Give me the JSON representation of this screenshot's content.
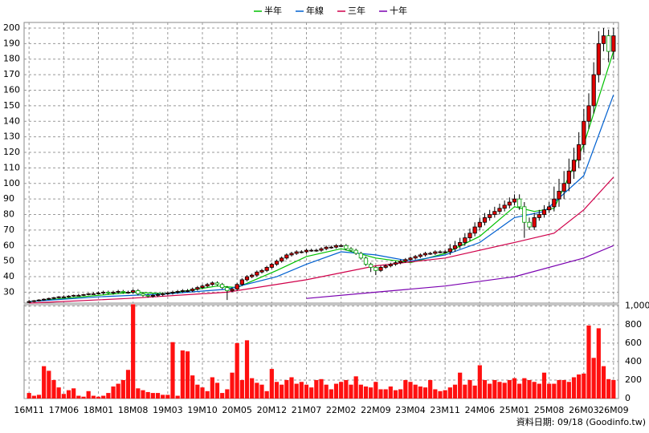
{
  "chart_data": [
    {
      "type": "candlestick",
      "xlim": [
        -1,
        119
      ],
      "xticks": [
        {
          "value": 0,
          "label": "16M11"
        },
        {
          "value": 7,
          "label": "17M06"
        },
        {
          "value": 14,
          "label": "18M01"
        },
        {
          "value": 21,
          "label": "18M08"
        },
        {
          "value": 28,
          "label": "19M03"
        },
        {
          "value": 35,
          "label": "19M10"
        },
        {
          "value": 42,
          "label": "20M05"
        },
        {
          "value": 49,
          "label": "20M12"
        },
        {
          "value": 56,
          "label": "21M07"
        },
        {
          "value": 63,
          "label": "22M02"
        },
        {
          "value": 70,
          "label": "22M09"
        },
        {
          "value": 77,
          "label": "23M04"
        },
        {
          "value": 84,
          "label": "23M11"
        },
        {
          "value": 91,
          "label": "24M06"
        },
        {
          "value": 98,
          "label": "25M01"
        },
        {
          "value": 105,
          "label": "25M08"
        },
        {
          "value": 112,
          "label": "26M03"
        },
        {
          "value": 118,
          "label": "26M09"
        }
      ],
      "ylim": [
        23,
        203.6
      ],
      "yticks": [
        30,
        40,
        50,
        60,
        70,
        80,
        90,
        100,
        110,
        120,
        130,
        140,
        150,
        160,
        170,
        180,
        190,
        200
      ],
      "grid": true,
      "up_color": "#e00000",
      "down_color": "#00a000",
      "open": [
        23.5,
        24,
        24.5,
        25,
        25.5,
        26,
        26.5,
        27,
        27,
        27.5,
        28,
        28,
        28.5,
        29,
        29,
        29.5,
        30,
        29.5,
        30,
        30.5,
        30,
        30,
        31,
        29,
        28,
        27.5,
        28,
        28.5,
        29,
        29.5,
        30,
        30.5,
        31,
        31,
        32,
        33,
        34,
        35,
        36,
        35,
        33,
        31,
        32,
        35,
        38,
        40,
        41,
        43,
        44,
        46,
        48,
        50,
        52,
        54,
        55,
        56,
        56,
        57,
        57,
        57,
        58,
        59,
        59,
        60,
        60,
        58,
        57,
        55,
        52,
        48,
        46,
        44,
        46,
        47,
        48,
        49,
        50,
        51,
        52,
        53,
        54,
        55,
        55,
        56,
        56,
        56,
        58,
        60,
        62,
        65,
        68,
        72,
        75,
        78,
        80,
        82,
        84,
        86,
        88,
        90,
        85,
        75,
        72,
        78,
        80,
        83,
        85,
        90,
        95,
        100,
        108,
        115,
        125,
        140,
        150,
        170,
        190,
        195,
        185
      ],
      "high": [
        25,
        25,
        25.5,
        26,
        26.5,
        27,
        27.5,
        28,
        28,
        28.5,
        29,
        29,
        29.5,
        30,
        30.5,
        31,
        31,
        31,
        31.5,
        31.5,
        31,
        32,
        32,
        30,
        29,
        29,
        29.5,
        30,
        30.5,
        31,
        31.5,
        32,
        32,
        33,
        34,
        35,
        36,
        37,
        37,
        36,
        34,
        33,
        36,
        39,
        41,
        42,
        44,
        45,
        47,
        49,
        51,
        53,
        55,
        56,
        57,
        57,
        58,
        58,
        58,
        59,
        60,
        60,
        61,
        61,
        61,
        59,
        58,
        56,
        53,
        49,
        47,
        47,
        48,
        49,
        50,
        51,
        52,
        53,
        54,
        55,
        56,
        56,
        57,
        57,
        57,
        61,
        63,
        65,
        68,
        71,
        75,
        78,
        81,
        83,
        85,
        87,
        89,
        91,
        93,
        93,
        88,
        78,
        81,
        83,
        86,
        88,
        98,
        103,
        108,
        116,
        123,
        133,
        148,
        158,
        178,
        198,
        200,
        199,
        200
      ],
      "low": [
        23,
        23.5,
        24,
        24.5,
        25,
        25.5,
        26,
        26.5,
        26.5,
        27,
        27.5,
        27.5,
        28,
        28.5,
        28.5,
        28.5,
        28.5,
        28.5,
        29,
        29,
        29,
        29,
        28,
        27,
        26.5,
        26.5,
        27,
        27.5,
        28,
        28.5,
        29,
        29.5,
        30,
        30,
        31,
        32,
        33,
        34,
        34,
        32,
        25,
        30,
        31,
        34,
        37,
        39,
        40,
        42,
        43,
        45,
        47,
        49,
        51,
        53,
        54,
        55,
        55,
        56,
        56,
        56,
        57,
        58,
        58,
        59,
        57,
        56,
        54,
        51,
        47,
        43,
        41,
        43,
        45,
        46,
        47,
        48,
        49,
        50,
        51,
        52,
        53,
        54,
        54,
        55,
        55,
        54,
        56,
        58,
        60,
        63,
        66,
        70,
        73,
        76,
        78,
        80,
        82,
        84,
        86,
        83,
        65,
        70,
        70,
        76,
        78,
        81,
        82,
        85,
        90,
        95,
        103,
        110,
        120,
        135,
        145,
        165,
        185,
        178,
        180
      ],
      "close": [
        24,
        24.5,
        25,
        25.5,
        26,
        26.5,
        27,
        27,
        27.5,
        28,
        28,
        28.5,
        29,
        29,
        29.5,
        30,
        29.5,
        30,
        30.5,
        30,
        30,
        31,
        29,
        28,
        27.5,
        28,
        28.5,
        29,
        29.5,
        30,
        30.5,
        31,
        31,
        32,
        33,
        34,
        35,
        36,
        35,
        33,
        31,
        32,
        35,
        38,
        40,
        41,
        43,
        44,
        46,
        48,
        50,
        52,
        54,
        55,
        56,
        56,
        57,
        57,
        57,
        58,
        59,
        59,
        60,
        60,
        58,
        57,
        55,
        52,
        48,
        46,
        44,
        46,
        47,
        48,
        49,
        50,
        51,
        52,
        53,
        54,
        55,
        55,
        56,
        56,
        56,
        58,
        60,
        62,
        65,
        68,
        72,
        75,
        78,
        80,
        82,
        84,
        86,
        88,
        90,
        85,
        75,
        72,
        78,
        80,
        83,
        85,
        90,
        95,
        100,
        108,
        115,
        125,
        140,
        150,
        170,
        190,
        195,
        185,
        195
      ],
      "series": [
        {
          "name": "半年",
          "color": "#00c000",
          "x": [
            0,
            14,
            21,
            28,
            38,
            42,
            50,
            56,
            63,
            70,
            77,
            84,
            91,
            98,
            102,
            106,
            112,
            118
          ],
          "values": [
            24,
            28,
            30,
            29,
            34,
            33,
            44,
            53,
            58,
            52,
            49,
            55,
            66,
            85,
            82,
            84,
            125,
            185
          ]
        },
        {
          "name": "年線",
          "color": "#0060d0",
          "x": [
            0,
            14,
            28,
            40,
            50,
            56,
            63,
            70,
            77,
            84,
            91,
            98,
            104,
            112,
            118
          ],
          "values": [
            24,
            27,
            29,
            32,
            40,
            48,
            56,
            54,
            50,
            54,
            62,
            78,
            82,
            105,
            157
          ]
        },
        {
          "name": "三年",
          "color": "#d0004a",
          "x": [
            0,
            20,
            40,
            56,
            70,
            84,
            98,
            106,
            112,
            118
          ],
          "values": [
            23,
            26,
            30,
            38,
            47,
            52,
            62,
            68,
            83,
            104
          ]
        },
        {
          "name": "十年",
          "color": "#7a00b0",
          "x": [
            56,
            70,
            84,
            98,
            112,
            118
          ],
          "values": [
            26,
            30,
            34,
            40,
            52,
            60
          ]
        }
      ]
    },
    {
      "type": "bar",
      "color": "#ff1010",
      "ylim": [
        0,
        1015
      ],
      "yticks": [
        0,
        200,
        400,
        600,
        800,
        {
          "value": 1000,
          "label": "1,000"
        }
      ],
      "values": [
        60,
        30,
        40,
        350,
        300,
        200,
        120,
        50,
        90,
        110,
        30,
        20,
        80,
        30,
        20,
        30,
        60,
        130,
        160,
        200,
        310,
        1020,
        110,
        90,
        70,
        60,
        60,
        40,
        40,
        610,
        30,
        520,
        510,
        250,
        150,
        120,
        80,
        230,
        170,
        60,
        100,
        280,
        600,
        200,
        630,
        220,
        170,
        150,
        80,
        320,
        180,
        150,
        200,
        230,
        160,
        180,
        150,
        120,
        200,
        210,
        150,
        100,
        160,
        180,
        200,
        150,
        240,
        150,
        130,
        120,
        180,
        100,
        100,
        130,
        90,
        100,
        200,
        180,
        150,
        130,
        120,
        200,
        100,
        80,
        90,
        120,
        150,
        280,
        150,
        200,
        140,
        360,
        200,
        160,
        200,
        180,
        170,
        200,
        220,
        160,
        220,
        200,
        180,
        160,
        280,
        160,
        160,
        200,
        200,
        180,
        230,
        260,
        270,
        790,
        440,
        760,
        350,
        210,
        200
      ]
    }
  ],
  "footer": "資料日期: 09/18 (Goodinfo.tw)"
}
